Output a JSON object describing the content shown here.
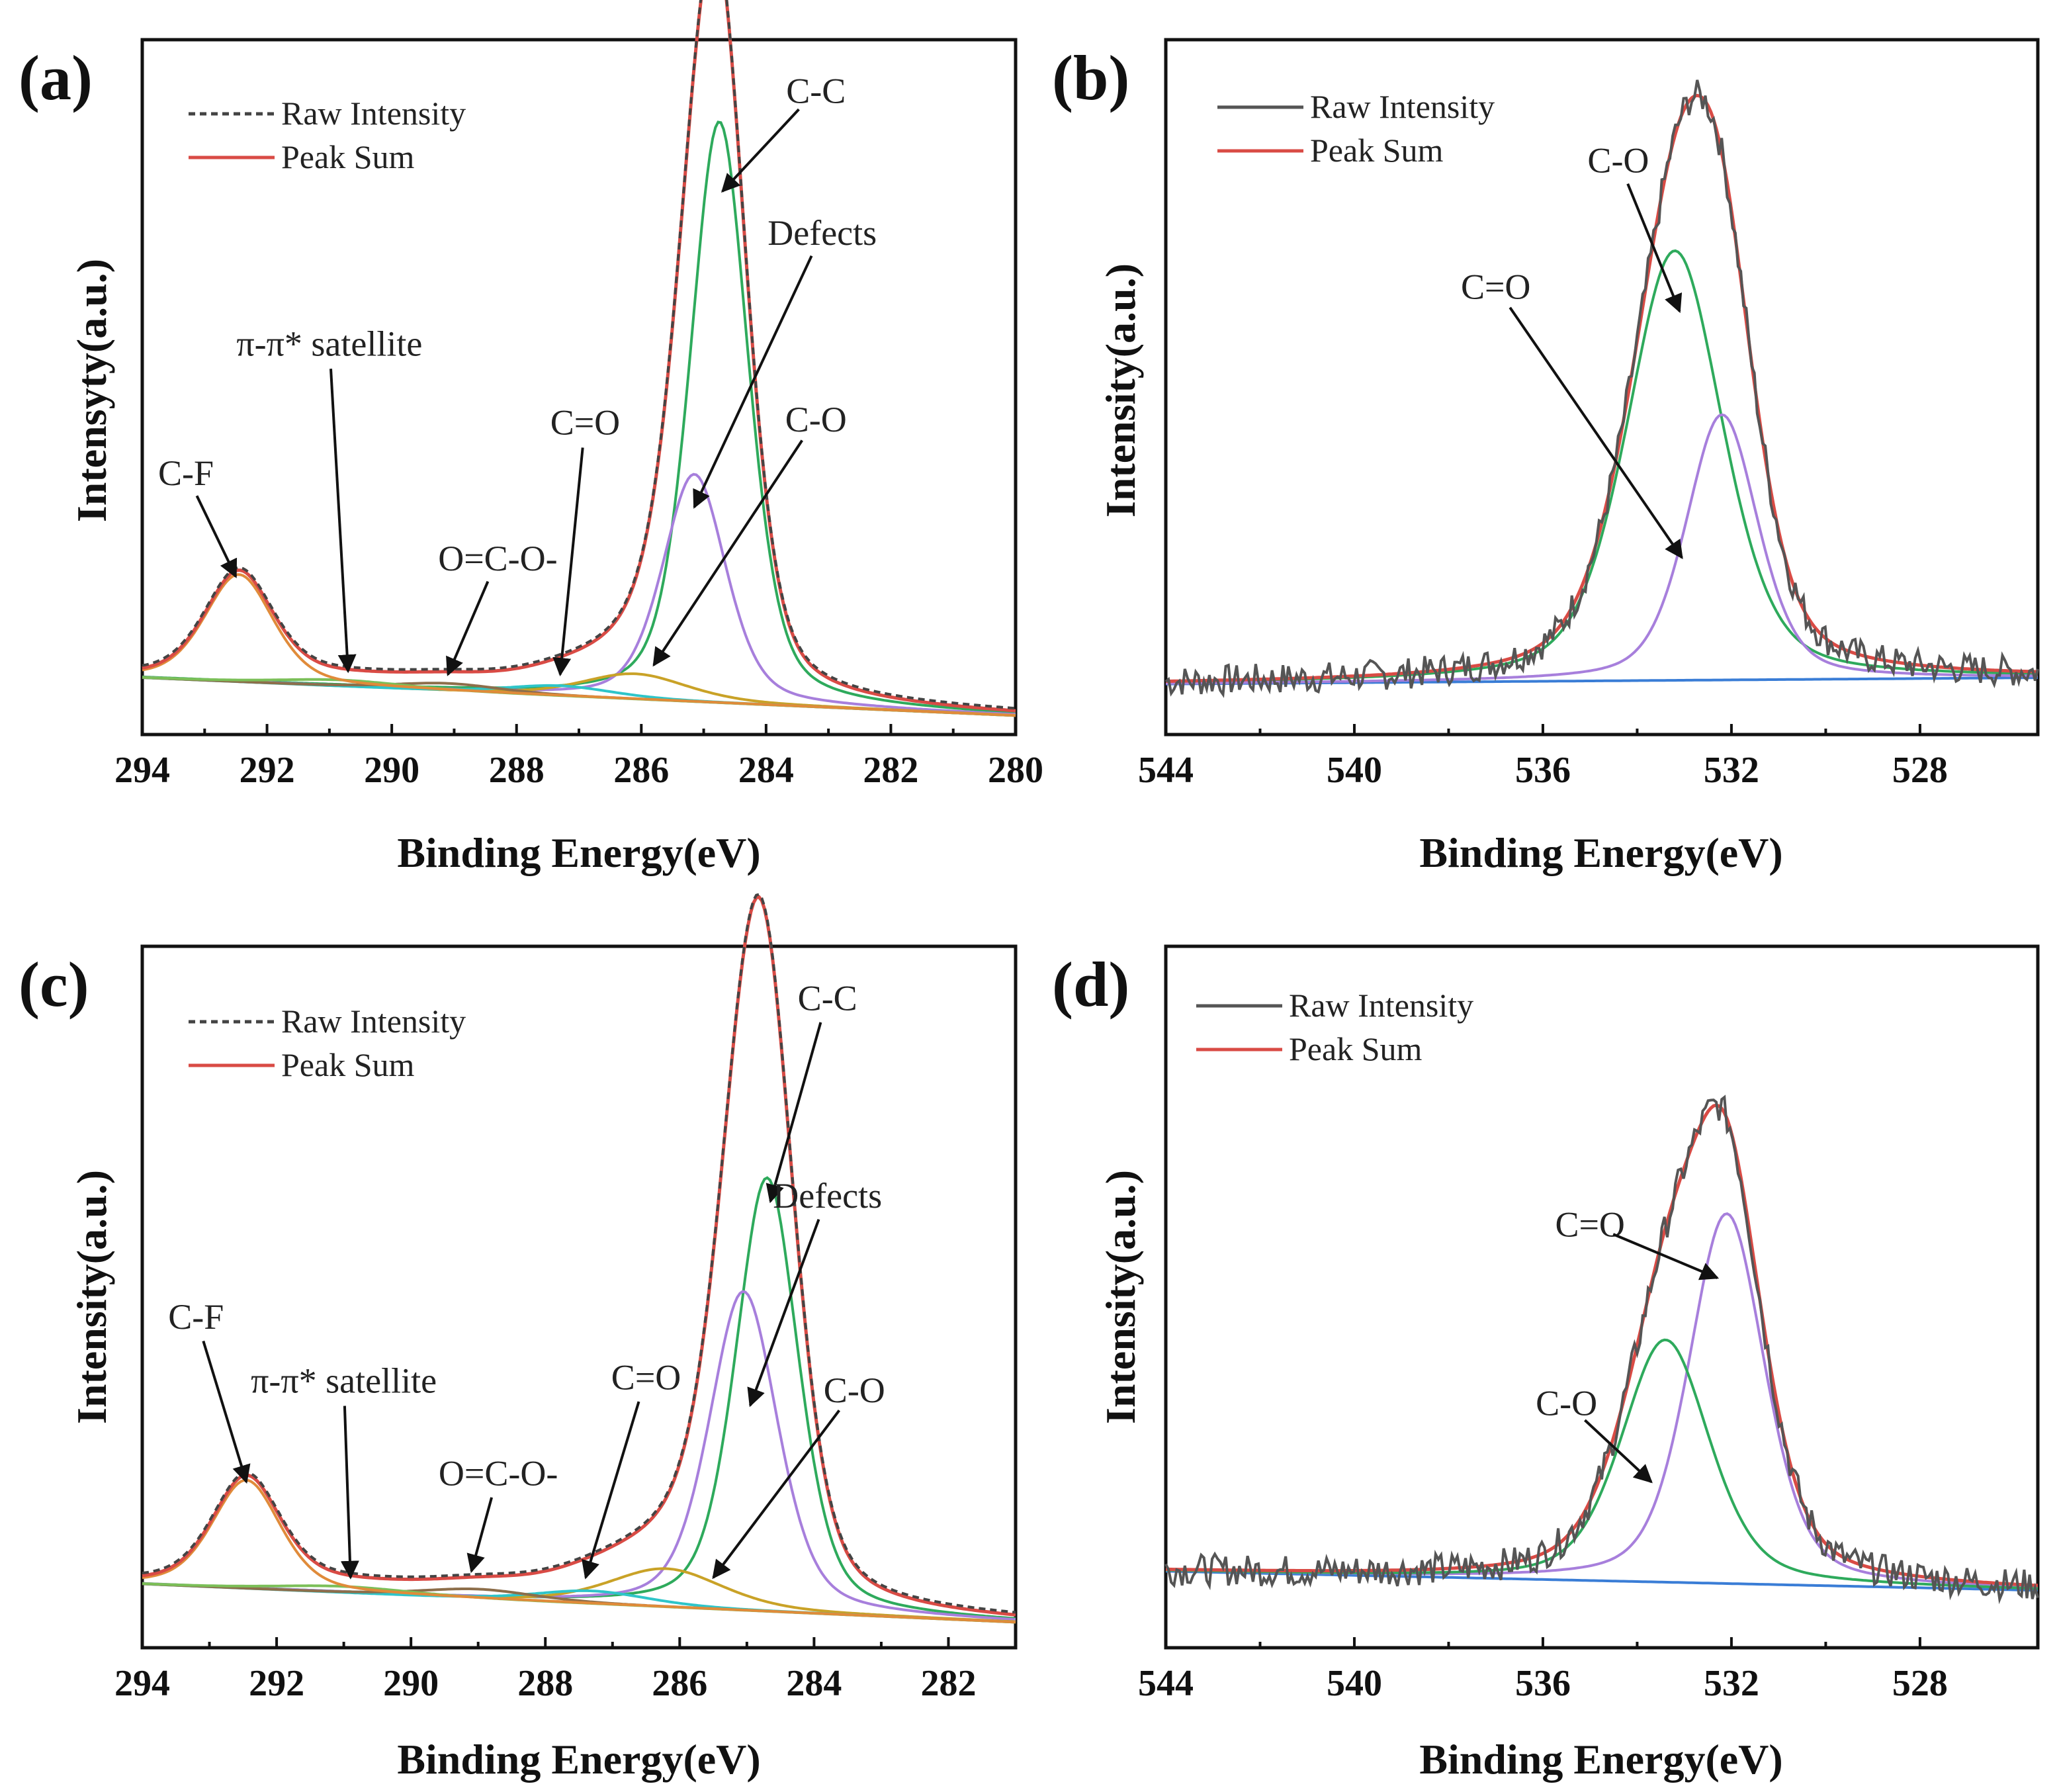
{
  "chart_data": [
    {
      "panel": "(a)",
      "type": "line",
      "xlabel": "Binding Energy(eV)",
      "ylabel": "Intensyty(a.u.)",
      "xlim": [
        294,
        280
      ],
      "xticks": [
        294,
        292,
        290,
        288,
        286,
        284,
        282,
        280
      ],
      "ylim": [
        0,
        1.1
      ],
      "legend": [
        {
          "label": "Raw Intensity",
          "color": "#444444",
          "style": "dashed"
        },
        {
          "label": "Peak Sum",
          "color": "#d94b45",
          "style": "solid"
        }
      ],
      "background": {
        "start": 0.09,
        "end": 0.03
      },
      "components": [
        {
          "name": "C-C",
          "color": "#2eaa5c",
          "center": 284.75,
          "height": 0.92,
          "width": 0.55
        },
        {
          "name": "Defects",
          "color": "#a77fdc",
          "center": 285.15,
          "height": 0.36,
          "width": 0.6
        },
        {
          "name": "C-O",
          "color": "#c9a227",
          "center": 286.1,
          "height": 0.04,
          "width": 1.0
        },
        {
          "name": "C=O",
          "color": "#2ec5c9",
          "center": 287.3,
          "height": 0.016,
          "width": 1.0
        },
        {
          "name": "O=C-O-",
          "color": "#8d6e4a",
          "center": 289.1,
          "height": 0.012,
          "width": 1.0
        },
        {
          "name": "π-π* satellite",
          "color": "#7bbf58",
          "center": 290.8,
          "height": 0.01,
          "width": 1.2
        },
        {
          "name": "C-F",
          "color": "#e08b3a",
          "center": 292.45,
          "height": 0.17,
          "width": 0.65
        }
      ],
      "annotations": [
        {
          "text": "C-C",
          "x": 283.2,
          "y": 1.0,
          "ax": 284.7,
          "ay": 0.86
        },
        {
          "text": "Defects",
          "x": 283.1,
          "y": 0.775,
          "ax": 285.15,
          "ay": 0.36
        },
        {
          "text": "π-π* satellite",
          "x": 291.0,
          "y": 0.6,
          "ax": 290.7,
          "ay": 0.1
        },
        {
          "text": "C-O",
          "x": 283.2,
          "y": 0.48,
          "ax": 285.8,
          "ay": 0.11
        },
        {
          "text": "C=O",
          "x": 286.9,
          "y": 0.475,
          "ax": 287.3,
          "ay": 0.095
        },
        {
          "text": "C-F",
          "x": 293.3,
          "y": 0.395,
          "ax": 292.5,
          "ay": 0.25
        },
        {
          "text": "O=C-O-",
          "x": 288.3,
          "y": 0.26,
          "ax": 289.1,
          "ay": 0.095
        }
      ]
    },
    {
      "panel": "(b)",
      "type": "line",
      "xlabel": "Binding Energy(eV)",
      "ylabel": "Intensity(a.u.)",
      "xlim": [
        544,
        525.5
      ],
      "xticks": [
        544,
        540,
        536,
        532,
        528
      ],
      "ylim": [
        0,
        1.1
      ],
      "legend": [
        {
          "label": "Raw Intensity",
          "color": "#555555",
          "style": "solid"
        },
        {
          "label": "Peak Sum",
          "color": "#d94b45",
          "style": "solid"
        }
      ],
      "baseline_color": "#3a7dd6",
      "background": {
        "start": 0.08,
        "end": 0.09
      },
      "components": [
        {
          "name": "C-O",
          "color": "#2eaa5c",
          "center": 533.2,
          "height": 0.68,
          "width": 1.2
        },
        {
          "name": "C=O",
          "color": "#a77fdc",
          "center": 532.2,
          "height": 0.42,
          "width": 0.9
        }
      ],
      "annotations": [
        {
          "text": "C-O",
          "x": 534.4,
          "y": 0.89,
          "ax": 533.1,
          "ay": 0.67
        },
        {
          "text": "C=O",
          "x": 537.0,
          "y": 0.69,
          "ax": 533.05,
          "ay": 0.28
        }
      ]
    },
    {
      "panel": "(c)",
      "type": "line",
      "xlabel": "Binding Energy(eV)",
      "ylabel": "Intensity(a.u.)",
      "xlim": [
        294,
        281
      ],
      "xticks": [
        294,
        292,
        290,
        288,
        286,
        284,
        282
      ],
      "ylim": [
        0,
        1.1
      ],
      "legend": [
        {
          "label": "Raw Intensity",
          "color": "#444444",
          "style": "dashed"
        },
        {
          "label": "Peak Sum",
          "color": "#d94b45",
          "style": "solid"
        }
      ],
      "background": {
        "start": 0.1,
        "end": 0.04
      },
      "components": [
        {
          "name": "C-C",
          "color": "#2eaa5c",
          "center": 284.7,
          "height": 0.68,
          "width": 0.55
        },
        {
          "name": "Defects",
          "color": "#a77fdc",
          "center": 285.05,
          "height": 0.5,
          "width": 0.6
        },
        {
          "name": "C-O",
          "color": "#c9a227",
          "center": 286.2,
          "height": 0.06,
          "width": 1.0
        },
        {
          "name": "C=O",
          "color": "#2ec5c9",
          "center": 287.3,
          "height": 0.02,
          "width": 1.0
        },
        {
          "name": "O=C-O-",
          "color": "#8d6e4a",
          "center": 289.0,
          "height": 0.015,
          "width": 1.0
        },
        {
          "name": "π-π* satellite",
          "color": "#7bbf58",
          "center": 291.0,
          "height": 0.01,
          "width": 1.2
        },
        {
          "name": "C-F",
          "color": "#e08b3a",
          "center": 292.45,
          "height": 0.17,
          "width": 0.6
        }
      ],
      "annotations": [
        {
          "text": "C-C",
          "x": 283.8,
          "y": 1.0,
          "ax": 284.65,
          "ay": 0.7
        },
        {
          "text": "Defects",
          "x": 283.8,
          "y": 0.69,
          "ax": 284.95,
          "ay": 0.38
        },
        {
          "text": "C-F",
          "x": 293.2,
          "y": 0.5,
          "ax": 292.45,
          "ay": 0.26
        },
        {
          "text": "π-π* satellite",
          "x": 291.0,
          "y": 0.4,
          "ax": 290.9,
          "ay": 0.11
        },
        {
          "text": "C=O",
          "x": 286.5,
          "y": 0.405,
          "ax": 287.4,
          "ay": 0.11
        },
        {
          "text": "C-O",
          "x": 283.4,
          "y": 0.385,
          "ax": 285.5,
          "ay": 0.11
        },
        {
          "text": "O=C-O-",
          "x": 288.7,
          "y": 0.255,
          "ax": 289.1,
          "ay": 0.12
        }
      ]
    },
    {
      "panel": "(d)",
      "type": "line",
      "xlabel": "Binding Energy(eV)",
      "ylabel": "Intensity(a.u.)",
      "xlim": [
        544,
        525.5
      ],
      "xticks": [
        544,
        540,
        536,
        532,
        528
      ],
      "ylim": [
        0,
        1.1
      ],
      "legend": [
        {
          "label": "Raw Intensity",
          "color": "#555555",
          "style": "solid"
        },
        {
          "label": "Peak Sum",
          "color": "#d94b45",
          "style": "solid"
        }
      ],
      "baseline_color": "#3a7dd6",
      "background": {
        "start": 0.12,
        "end": 0.09
      },
      "components": [
        {
          "name": "C=O",
          "color": "#a77fdc",
          "center": 532.1,
          "height": 0.58,
          "width": 0.95
        },
        {
          "name": "C-O",
          "color": "#2eaa5c",
          "center": 533.4,
          "height": 0.38,
          "width": 1.1
        }
      ],
      "annotations": [
        {
          "text": "C=O",
          "x": 535.0,
          "y": 0.645,
          "ax": 532.3,
          "ay": 0.58
        },
        {
          "text": "C-O",
          "x": 535.5,
          "y": 0.365,
          "ax": 533.7,
          "ay": 0.26
        }
      ]
    }
  ]
}
